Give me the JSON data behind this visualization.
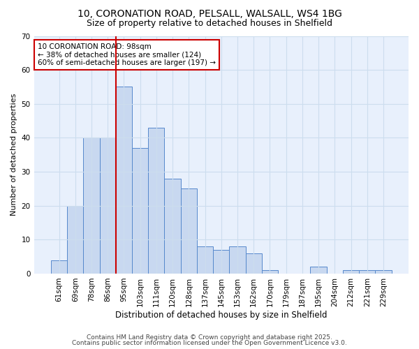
{
  "title1": "10, CORONATION ROAD, PELSALL, WALSALL, WS4 1BG",
  "title2": "Size of property relative to detached houses in Shelfield",
  "xlabel": "Distribution of detached houses by size in Shelfield",
  "ylabel": "Number of detached properties",
  "categories": [
    "61sqm",
    "69sqm",
    "78sqm",
    "86sqm",
    "95sqm",
    "103sqm",
    "111sqm",
    "120sqm",
    "128sqm",
    "137sqm",
    "145sqm",
    "153sqm",
    "162sqm",
    "170sqm",
    "179sqm",
    "187sqm",
    "195sqm",
    "204sqm",
    "212sqm",
    "221sqm",
    "229sqm"
  ],
  "values": [
    4,
    20,
    40,
    40,
    55,
    37,
    43,
    28,
    25,
    8,
    7,
    8,
    6,
    1,
    0,
    0,
    2,
    0,
    1,
    1,
    1
  ],
  "bar_color": "#c8d8f0",
  "bar_edgecolor": "#5588cc",
  "vline_x": 4.0,
  "vline_color": "#cc0000",
  "annotation_text": "10 CORONATION ROAD: 98sqm\n← 38% of detached houses are smaller (124)\n60% of semi-detached houses are larger (197) →",
  "annotation_box_color": "white",
  "annotation_box_edgecolor": "#cc0000",
  "ylim": [
    0,
    70
  ],
  "yticks": [
    0,
    10,
    20,
    30,
    40,
    50,
    60,
    70
  ],
  "grid_color": "#ccddee",
  "bg_color": "#ffffff",
  "plot_bg_color": "#e8f0fc",
  "footer1": "Contains HM Land Registry data © Crown copyright and database right 2025.",
  "footer2": "Contains public sector information licensed under the Open Government Licence v3.0."
}
